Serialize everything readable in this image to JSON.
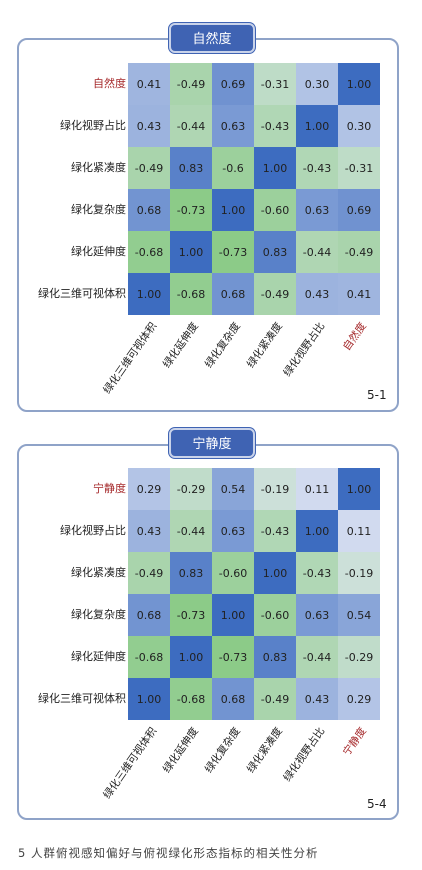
{
  "caption": "5 人群俯视感知偏好与俯视绿化形态指标的相关性分析",
  "chart_data": [
    {
      "type": "heatmap",
      "title": "自然度",
      "panel_number": "5-1",
      "rows": [
        "自然度",
        "绿化视野占比",
        "绿化紧凑度",
        "绿化复杂度",
        "绿化延伸度",
        "绿化三维可视体积"
      ],
      "columns": [
        "绿化三维可视体积",
        "绿化延伸度",
        "绿化复杂度",
        "绿化紧凑度",
        "绿化视野占比",
        "自然度"
      ],
      "values": [
        [
          0.41,
          -0.49,
          0.69,
          -0.31,
          0.3,
          1.0
        ],
        [
          0.43,
          -0.44,
          0.63,
          -0.43,
          1.0,
          0.3
        ],
        [
          -0.49,
          0.83,
          -0.6,
          1.0,
          -0.43,
          -0.31
        ],
        [
          0.68,
          -0.73,
          1.0,
          -0.6,
          0.63,
          0.69
        ],
        [
          -0.68,
          1.0,
          -0.73,
          0.83,
          -0.44,
          -0.49
        ],
        [
          1.0,
          -0.68,
          0.68,
          -0.49,
          0.43,
          0.41
        ]
      ],
      "labels": [
        [
          "0.41",
          "-0.49",
          "0.69",
          "-0.31",
          "0.30",
          "1.00"
        ],
        [
          "0.43",
          "-0.44",
          "0.63",
          "-0.43",
          "1.00",
          "0.30"
        ],
        [
          "-0.49",
          "0.83",
          "-0.6",
          "1.00",
          "-0.43",
          "-0.31"
        ],
        [
          "0.68",
          "-0.73",
          "1.00",
          "-0.60",
          "0.63",
          "0.69"
        ],
        [
          "-0.68",
          "1.00",
          "-0.73",
          "0.83",
          "-0.44",
          "-0.49"
        ],
        [
          "1.00",
          "-0.68",
          "0.68",
          "-0.49",
          "0.43",
          "0.41"
        ]
      ]
    },
    {
      "type": "heatmap",
      "title": "宁静度",
      "panel_number": "5-4",
      "rows": [
        "宁静度",
        "绿化视野占比",
        "绿化紧凑度",
        "绿化复杂度",
        "绿化延伸度",
        "绿化三维可视体积"
      ],
      "columns": [
        "绿化三维可视体积",
        "绿化延伸度",
        "绿化复杂度",
        "绿化紧凑度",
        "绿化视野占比",
        "宁静度"
      ],
      "values": [
        [
          0.29,
          -0.29,
          0.54,
          -0.19,
          0.11,
          1.0
        ],
        [
          0.43,
          -0.44,
          0.63,
          -0.43,
          1.0,
          0.11
        ],
        [
          -0.49,
          0.83,
          -0.6,
          1.0,
          -0.43,
          -0.19
        ],
        [
          0.68,
          -0.73,
          1.0,
          -0.6,
          0.63,
          0.54
        ],
        [
          -0.68,
          1.0,
          -0.73,
          0.83,
          -0.44,
          -0.29
        ],
        [
          1.0,
          -0.68,
          0.68,
          -0.49,
          0.43,
          0.29
        ]
      ],
      "labels": [
        [
          "0.29",
          "-0.29",
          "0.54",
          "-0.19",
          "0.11",
          "1.00"
        ],
        [
          "0.43",
          "-0.44",
          "0.63",
          "-0.43",
          "1.00",
          "0.11"
        ],
        [
          "-0.49",
          "0.83",
          "-0.60",
          "1.00",
          "-0.43",
          "-0.19"
        ],
        [
          "0.68",
          "-0.73",
          "1.00",
          "-0.60",
          "0.63",
          "0.54"
        ],
        [
          "-0.68",
          "1.00",
          "-0.73",
          "0.83",
          "-0.44",
          "-0.29"
        ],
        [
          "1.00",
          "-0.68",
          "0.68",
          "-0.49",
          "0.43",
          "0.29"
        ]
      ]
    }
  ],
  "colors": {
    "positive_max": "#3d6cc0",
    "neutral": "#e3e8f5",
    "negative_max": "#6cc060",
    "highlight_text": "#a5282a",
    "title_bg": "#3f63b3"
  }
}
